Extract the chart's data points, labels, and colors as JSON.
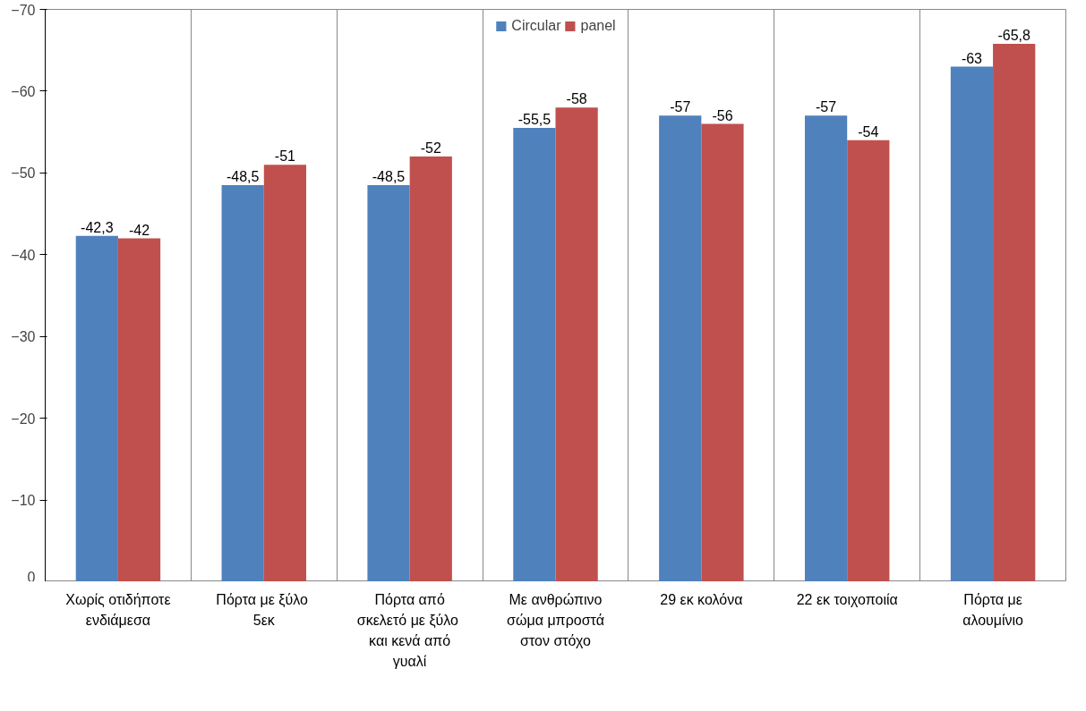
{
  "chart_data": {
    "type": "bar",
    "categories": [
      "Χωρίς οτιδήποτε ενδιάμεσα",
      "Πόρτα με  ξύλο 5εκ",
      "Πόρτα από σκελετό με  ξύλο και κενά από γυαλί",
      "Με ανθρώπινο σώμα μπροστά στον στόχο",
      "29 εκ κολόνα",
      "22 εκ τοιχοποιία",
      "Πόρτα με αλουμίνιο"
    ],
    "series": [
      {
        "name": "Circular",
        "color": "#4f81bd",
        "values": [
          -42.3,
          -48.5,
          -48.5,
          -55.5,
          -57,
          -57,
          -63
        ],
        "value_labels": [
          "-42,3",
          "-48,5",
          "-48,5",
          "-55,5",
          "-57",
          "-57",
          "-63"
        ]
      },
      {
        "name": "panel",
        "color": "#c0504d",
        "values": [
          -42,
          -51,
          -52,
          -58,
          -56,
          -54,
          -65.8
        ],
        "value_labels": [
          "-42",
          "-51",
          "-52",
          "-58",
          "-56",
          "-54",
          "-65,8"
        ]
      }
    ],
    "ylim": [
      0,
      -70
    ],
    "yticks": [
      0,
      -10,
      -20,
      -30,
      -40,
      -50,
      -60,
      -70
    ],
    "grid": "x",
    "legend": "top"
  }
}
